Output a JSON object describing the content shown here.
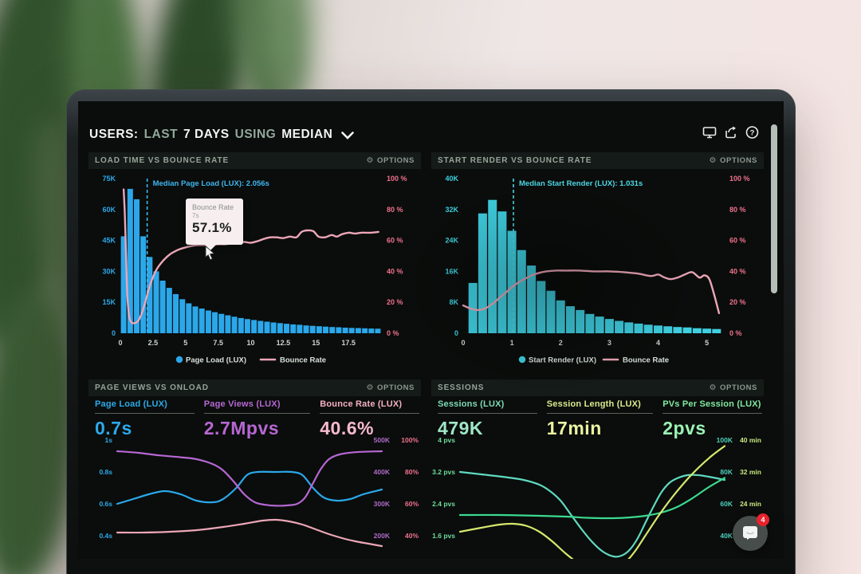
{
  "header": {
    "title": {
      "users": "USERS:",
      "last": "LAST",
      "days": "7 DAYS",
      "using": "USING",
      "median": "MEDIAN"
    }
  },
  "panels": [
    {
      "title": "LOAD TIME VS BOUNCE RATE",
      "options": "OPTIONS"
    },
    {
      "title": "START RENDER VS BOUNCE RATE",
      "options": "OPTIONS"
    },
    {
      "title": "PAGE VIEWS VS ONLOAD",
      "options": "OPTIONS",
      "metrics": [
        {
          "label": "Page Load (LUX)",
          "value": "0.7s",
          "color": "#2da9ea"
        },
        {
          "label": "Page Views (LUX)",
          "value": "2.7Mpvs",
          "color": "#b767d3"
        },
        {
          "label": "Bounce Rate (LUX)",
          "value": "40.6%",
          "color": "#f7aecb"
        }
      ]
    },
    {
      "title": "SESSIONS",
      "options": "OPTIONS",
      "metrics": [
        {
          "label": "Sessions (LUX)",
          "value": "479K",
          "color": "#8fe2c3"
        },
        {
          "label": "Session Length (LUX)",
          "value": "17min",
          "color": "#e5f0a0"
        },
        {
          "label": "PVs Per Session (LUX)",
          "value": "2pvs",
          "color": "#93efae"
        }
      ]
    }
  ],
  "tooltip": {
    "title": "Bounce Rate",
    "sub": "7s",
    "value": "57.1%"
  },
  "chat": {
    "badge": "4"
  },
  "colors": {
    "blue": "#2ba7ea",
    "cyan": "#3fd0e2",
    "pink_line": "#eca6b8",
    "pink_axis": "#f0718e",
    "purple": "#b767d3",
    "teal": "#5fd9c0",
    "green": "#3bd98f",
    "yellow": "#d7e86e",
    "screen_bg": "#0a0d0b",
    "panel_header_bg": "#151b18"
  },
  "chart_data": [
    {
      "type": "bar+line",
      "title": "LOAD TIME VS BOUNCE RATE",
      "left_ticks": [
        "75K",
        "60K",
        "45K",
        "30K",
        "15K",
        "0"
      ],
      "left_max": 75,
      "right_ticks": [
        "100 %",
        "80 %",
        "60 %",
        "40 %",
        "20 %",
        "0 %"
      ],
      "right_max": 100,
      "x_ticks": [
        0,
        2.5,
        5,
        7.5,
        10,
        12.5,
        15,
        17.5
      ],
      "x_range": [
        0,
        20
      ],
      "x_unit": "seconds",
      "bars": {
        "start": 0,
        "width": 0.5,
        "values_k": [
          47,
          70,
          65,
          47,
          37,
          30,
          25.5,
          22,
          19,
          16.5,
          14.5,
          13,
          12,
          11,
          10.2,
          9.4,
          8.7,
          8,
          7.4,
          6.9,
          6.4,
          6,
          5.6,
          5.2,
          4.9,
          4.6,
          4.3,
          4.1,
          3.8,
          3.6,
          3.4,
          3.2,
          3,
          2.9,
          2.7,
          2.6,
          2.5,
          2.4,
          2.3,
          2.2
        ]
      },
      "line_pct": [
        [
          0.25,
          93
        ],
        [
          0.35,
          75
        ],
        [
          0.45,
          45
        ],
        [
          0.55,
          22
        ],
        [
          0.7,
          10
        ],
        [
          0.85,
          7
        ],
        [
          1.0,
          6.5
        ],
        [
          1.2,
          6.8
        ],
        [
          1.4,
          8.5
        ],
        [
          1.6,
          12
        ],
        [
          1.8,
          17
        ],
        [
          2.0,
          23
        ],
        [
          2.2,
          29
        ],
        [
          2.4,
          34
        ],
        [
          2.7,
          40
        ],
        [
          3.0,
          44
        ],
        [
          3.4,
          48
        ],
        [
          3.8,
          51
        ],
        [
          4.2,
          53
        ],
        [
          4.6,
          54.5
        ],
        [
          5.0,
          55.5
        ],
        [
          5.5,
          56.5
        ],
        [
          6.0,
          57
        ],
        [
          6.5,
          57
        ],
        [
          7.0,
          57.1
        ],
        [
          7.5,
          57.5
        ],
        [
          8.0,
          57.5
        ],
        [
          8.5,
          58
        ],
        [
          9.0,
          58.5
        ],
        [
          9.5,
          59
        ],
        [
          10.0,
          58.5
        ],
        [
          10.5,
          59.5
        ],
        [
          11.0,
          61
        ],
        [
          11.5,
          62
        ],
        [
          12.0,
          62
        ],
        [
          12.5,
          61.5
        ],
        [
          13.0,
          62.5
        ],
        [
          13.5,
          62
        ],
        [
          13.9,
          65.5
        ],
        [
          14.3,
          66.5
        ],
        [
          14.8,
          66
        ],
        [
          15.2,
          62.5
        ],
        [
          15.7,
          62
        ],
        [
          16.2,
          63.5
        ],
        [
          16.6,
          62.5
        ],
        [
          17.0,
          64
        ],
        [
          17.5,
          65
        ],
        [
          18.0,
          64.5
        ],
        [
          18.5,
          65
        ],
        [
          19.2,
          65
        ],
        [
          19.8,
          65.5
        ]
      ],
      "median": {
        "x": 2.056,
        "label": "Median Page Load (LUX): 2.056s"
      },
      "legend": [
        {
          "label": "Page Load (LUX)",
          "marker": "dot"
        },
        {
          "label": "Bounce Rate",
          "marker": "line"
        }
      ],
      "bar_color": "#2ba7ea",
      "line_color": "#eca6b8",
      "left_axis_color": "#2ba7ea",
      "right_axis_color": "#f0718e",
      "median_color": "#3fb6f0"
    },
    {
      "type": "bar+line",
      "title": "START RENDER VS BOUNCE RATE",
      "left_ticks": [
        "40K",
        "32K",
        "24K",
        "16K",
        "8K",
        "0"
      ],
      "left_max": 40,
      "right_ticks": [
        "100 %",
        "80 %",
        "60 %",
        "40 %",
        "20 %",
        "0 %"
      ],
      "right_max": 100,
      "x_ticks": [
        0,
        1,
        2,
        3,
        4,
        5
      ],
      "x_range": [
        0,
        5.35
      ],
      "x_unit": "seconds",
      "bars": {
        "start": 0.1,
        "width": 0.2,
        "values_k": [
          13,
          31,
          34.5,
          31.5,
          26.5,
          21.5,
          17.5,
          13.5,
          11,
          8.5,
          7,
          6,
          5,
          4.3,
          3.7,
          3.2,
          2.8,
          2.5,
          2.2,
          2,
          1.8,
          1.6,
          1.5,
          1.3,
          1.2,
          1.1
        ]
      },
      "line_pct": [
        [
          0,
          18
        ],
        [
          0.15,
          16
        ],
        [
          0.3,
          15
        ],
        [
          0.45,
          16
        ],
        [
          0.6,
          19
        ],
        [
          0.75,
          23
        ],
        [
          0.9,
          27
        ],
        [
          1.05,
          31
        ],
        [
          1.2,
          34
        ],
        [
          1.35,
          36.5
        ],
        [
          1.5,
          38.5
        ],
        [
          1.7,
          40
        ],
        [
          1.9,
          40.5
        ],
        [
          2.1,
          40.5
        ],
        [
          2.4,
          40.5
        ],
        [
          2.7,
          40
        ],
        [
          3.0,
          40
        ],
        [
          3.3,
          39.5
        ],
        [
          3.6,
          38.5
        ],
        [
          3.85,
          37
        ],
        [
          4.0,
          38
        ],
        [
          4.1,
          36.5
        ],
        [
          4.25,
          35
        ],
        [
          4.4,
          36
        ],
        [
          4.55,
          38
        ],
        [
          4.7,
          39.5
        ],
        [
          4.85,
          36
        ],
        [
          4.95,
          37.5
        ],
        [
          5.05,
          35
        ],
        [
          5.15,
          25
        ],
        [
          5.25,
          13
        ]
      ],
      "median": {
        "x": 1.031,
        "label": "Median Start Render (LUX): 1.031s"
      },
      "legend": [
        {
          "label": "Start Render (LUX)",
          "marker": "dot"
        },
        {
          "label": "Bounce Rate",
          "marker": "line"
        }
      ],
      "bar_color": "#3fd0e2",
      "line_color": "#eca6b8",
      "left_axis_color": "#3fd0e2",
      "right_axis_color": "#f0718e",
      "median_color": "#4fd9e8"
    },
    {
      "type": "multi-line",
      "title": "PAGE VIEWS VS ONLOAD",
      "left_ticks": [
        "1s",
        "0.8s",
        "0.6s",
        "0.4s"
      ],
      "right_ticks": [
        [
          "500K",
          "100%"
        ],
        [
          "400K",
          "80%"
        ],
        [
          "300K",
          "60%"
        ],
        [
          "200K",
          "40%"
        ]
      ],
      "left_range": [
        0.255,
        1.05
      ],
      "left_axis_color": "#2da9ea",
      "right_k_color": "#b06ac9",
      "right_unit_color": "#f0718e",
      "series": [
        {
          "name": "Page Load (LUX)",
          "unit": "s",
          "scale": 1,
          "color": "#2ba7ea",
          "points": [
            [
              0,
              0.6
            ],
            [
              6,
              0.63
            ],
            [
              12,
              0.66
            ],
            [
              18,
              0.68
            ],
            [
              24,
              0.66
            ],
            [
              30,
              0.62
            ],
            [
              36,
              0.61
            ],
            [
              40,
              0.63
            ],
            [
              45,
              0.7
            ],
            [
              49,
              0.78
            ],
            [
              53,
              0.8
            ],
            [
              60,
              0.8
            ],
            [
              66,
              0.8
            ],
            [
              70,
              0.78
            ],
            [
              74,
              0.7
            ],
            [
              78,
              0.64
            ],
            [
              83,
              0.62
            ],
            [
              88,
              0.63
            ],
            [
              93,
              0.66
            ],
            [
              100,
              0.69
            ]
          ]
        },
        {
          "name": "Page Views (LUX)",
          "unit": "Kpvs",
          "scale": 500,
          "color": "#b767d3",
          "points": [
            [
              0,
              465
            ],
            [
              8,
              460
            ],
            [
              16,
              452
            ],
            [
              24,
              446
            ],
            [
              30,
              440
            ],
            [
              36,
              425
            ],
            [
              40,
              405
            ],
            [
              44,
              370
            ],
            [
              48,
              330
            ],
            [
              52,
              305
            ],
            [
              56,
              297
            ],
            [
              60,
              294
            ],
            [
              64,
              295
            ],
            [
              68,
              300
            ],
            [
              71,
              320
            ],
            [
              74,
              365
            ],
            [
              77,
              410
            ],
            [
              80,
              440
            ],
            [
              84,
              455
            ],
            [
              90,
              462
            ],
            [
              100,
              465
            ]
          ]
        },
        {
          "name": "Bounce Rate (LUX)",
          "unit": "%",
          "scale": 100,
          "color": "#eca6b8",
          "points": [
            [
              0,
              42
            ],
            [
              10,
              42
            ],
            [
              20,
              42.5
            ],
            [
              30,
              43.5
            ],
            [
              40,
              45.5
            ],
            [
              48,
              47.5
            ],
            [
              55,
              49.5
            ],
            [
              60,
              50
            ],
            [
              65,
              49
            ],
            [
              70,
              47
            ],
            [
              75,
              44
            ],
            [
              80,
              41
            ],
            [
              85,
              38.5
            ],
            [
              90,
              36.5
            ],
            [
              95,
              35
            ],
            [
              100,
              33.5
            ]
          ]
        }
      ]
    },
    {
      "type": "multi-line",
      "title": "SESSIONS",
      "left_ticks": [
        "4 pvs",
        "3.2 pvs",
        "2.4 pvs",
        "1.6 pvs"
      ],
      "right_ticks": [
        [
          "100K",
          "40 min"
        ],
        [
          "80K",
          "32 min"
        ],
        [
          "60K",
          "24 min"
        ],
        [
          "40K",
          ""
        ]
      ],
      "left_range": [
        1.02,
        4.2
      ],
      "left_axis_color": "#6fdb9e",
      "right_k_color": "#4fd0bc",
      "right_unit_color": "#c9e87f",
      "series": [
        {
          "name": "Sessions (LUX)",
          "unit": "K",
          "scale": 25,
          "color": "#5fd9c0",
          "points": [
            [
              0,
              80
            ],
            [
              8,
              78.5
            ],
            [
              16,
              77
            ],
            [
              24,
              75
            ],
            [
              30,
              72
            ],
            [
              34,
              68
            ],
            [
              38,
              62
            ],
            [
              42,
              53
            ],
            [
              46,
              44
            ],
            [
              50,
              36
            ],
            [
              54,
              30
            ],
            [
              58,
              27
            ],
            [
              61,
              27.5
            ],
            [
              64,
              31
            ],
            [
              67,
              38
            ],
            [
              70,
              48
            ],
            [
              73,
              58
            ],
            [
              76,
              67
            ],
            [
              79,
              73
            ],
            [
              82,
              76
            ],
            [
              86,
              78
            ],
            [
              90,
              78
            ],
            [
              94,
              77
            ],
            [
              100,
              75
            ]
          ]
        },
        {
          "name": "PVs Per Session (LUX)",
          "unit": "pvs",
          "scale": 1,
          "color": "#3bd98f",
          "points": [
            [
              0,
              2.12
            ],
            [
              15,
              2.12
            ],
            [
              30,
              2.1
            ],
            [
              40,
              2.08
            ],
            [
              48,
              2.05
            ],
            [
              55,
              2.04
            ],
            [
              62,
              2.05
            ],
            [
              70,
              2.1
            ],
            [
              76,
              2.18
            ],
            [
              82,
              2.32
            ],
            [
              88,
              2.55
            ],
            [
              94,
              2.82
            ],
            [
              100,
              3.05
            ]
          ]
        },
        {
          "name": "Session Length (LUX)",
          "unit": "min",
          "scale": 10,
          "color": "#d7e86e",
          "points": [
            [
              0,
              17
            ],
            [
              8,
              18
            ],
            [
              15,
              18.8
            ],
            [
              20,
              19
            ],
            [
              25,
              18.5
            ],
            [
              30,
              17
            ],
            [
              35,
              14.5
            ],
            [
              40,
              11.5
            ],
            [
              45,
              9
            ],
            [
              50,
              7.5
            ],
            [
              55,
              7
            ],
            [
              58,
              7.5
            ],
            [
              62,
              9
            ],
            [
              66,
              12
            ],
            [
              70,
              16
            ],
            [
              75,
              21
            ],
            [
              80,
              25.5
            ],
            [
              85,
              29.5
            ],
            [
              90,
              33
            ],
            [
              95,
              36
            ],
            [
              100,
              38.5
            ]
          ]
        }
      ]
    }
  ]
}
